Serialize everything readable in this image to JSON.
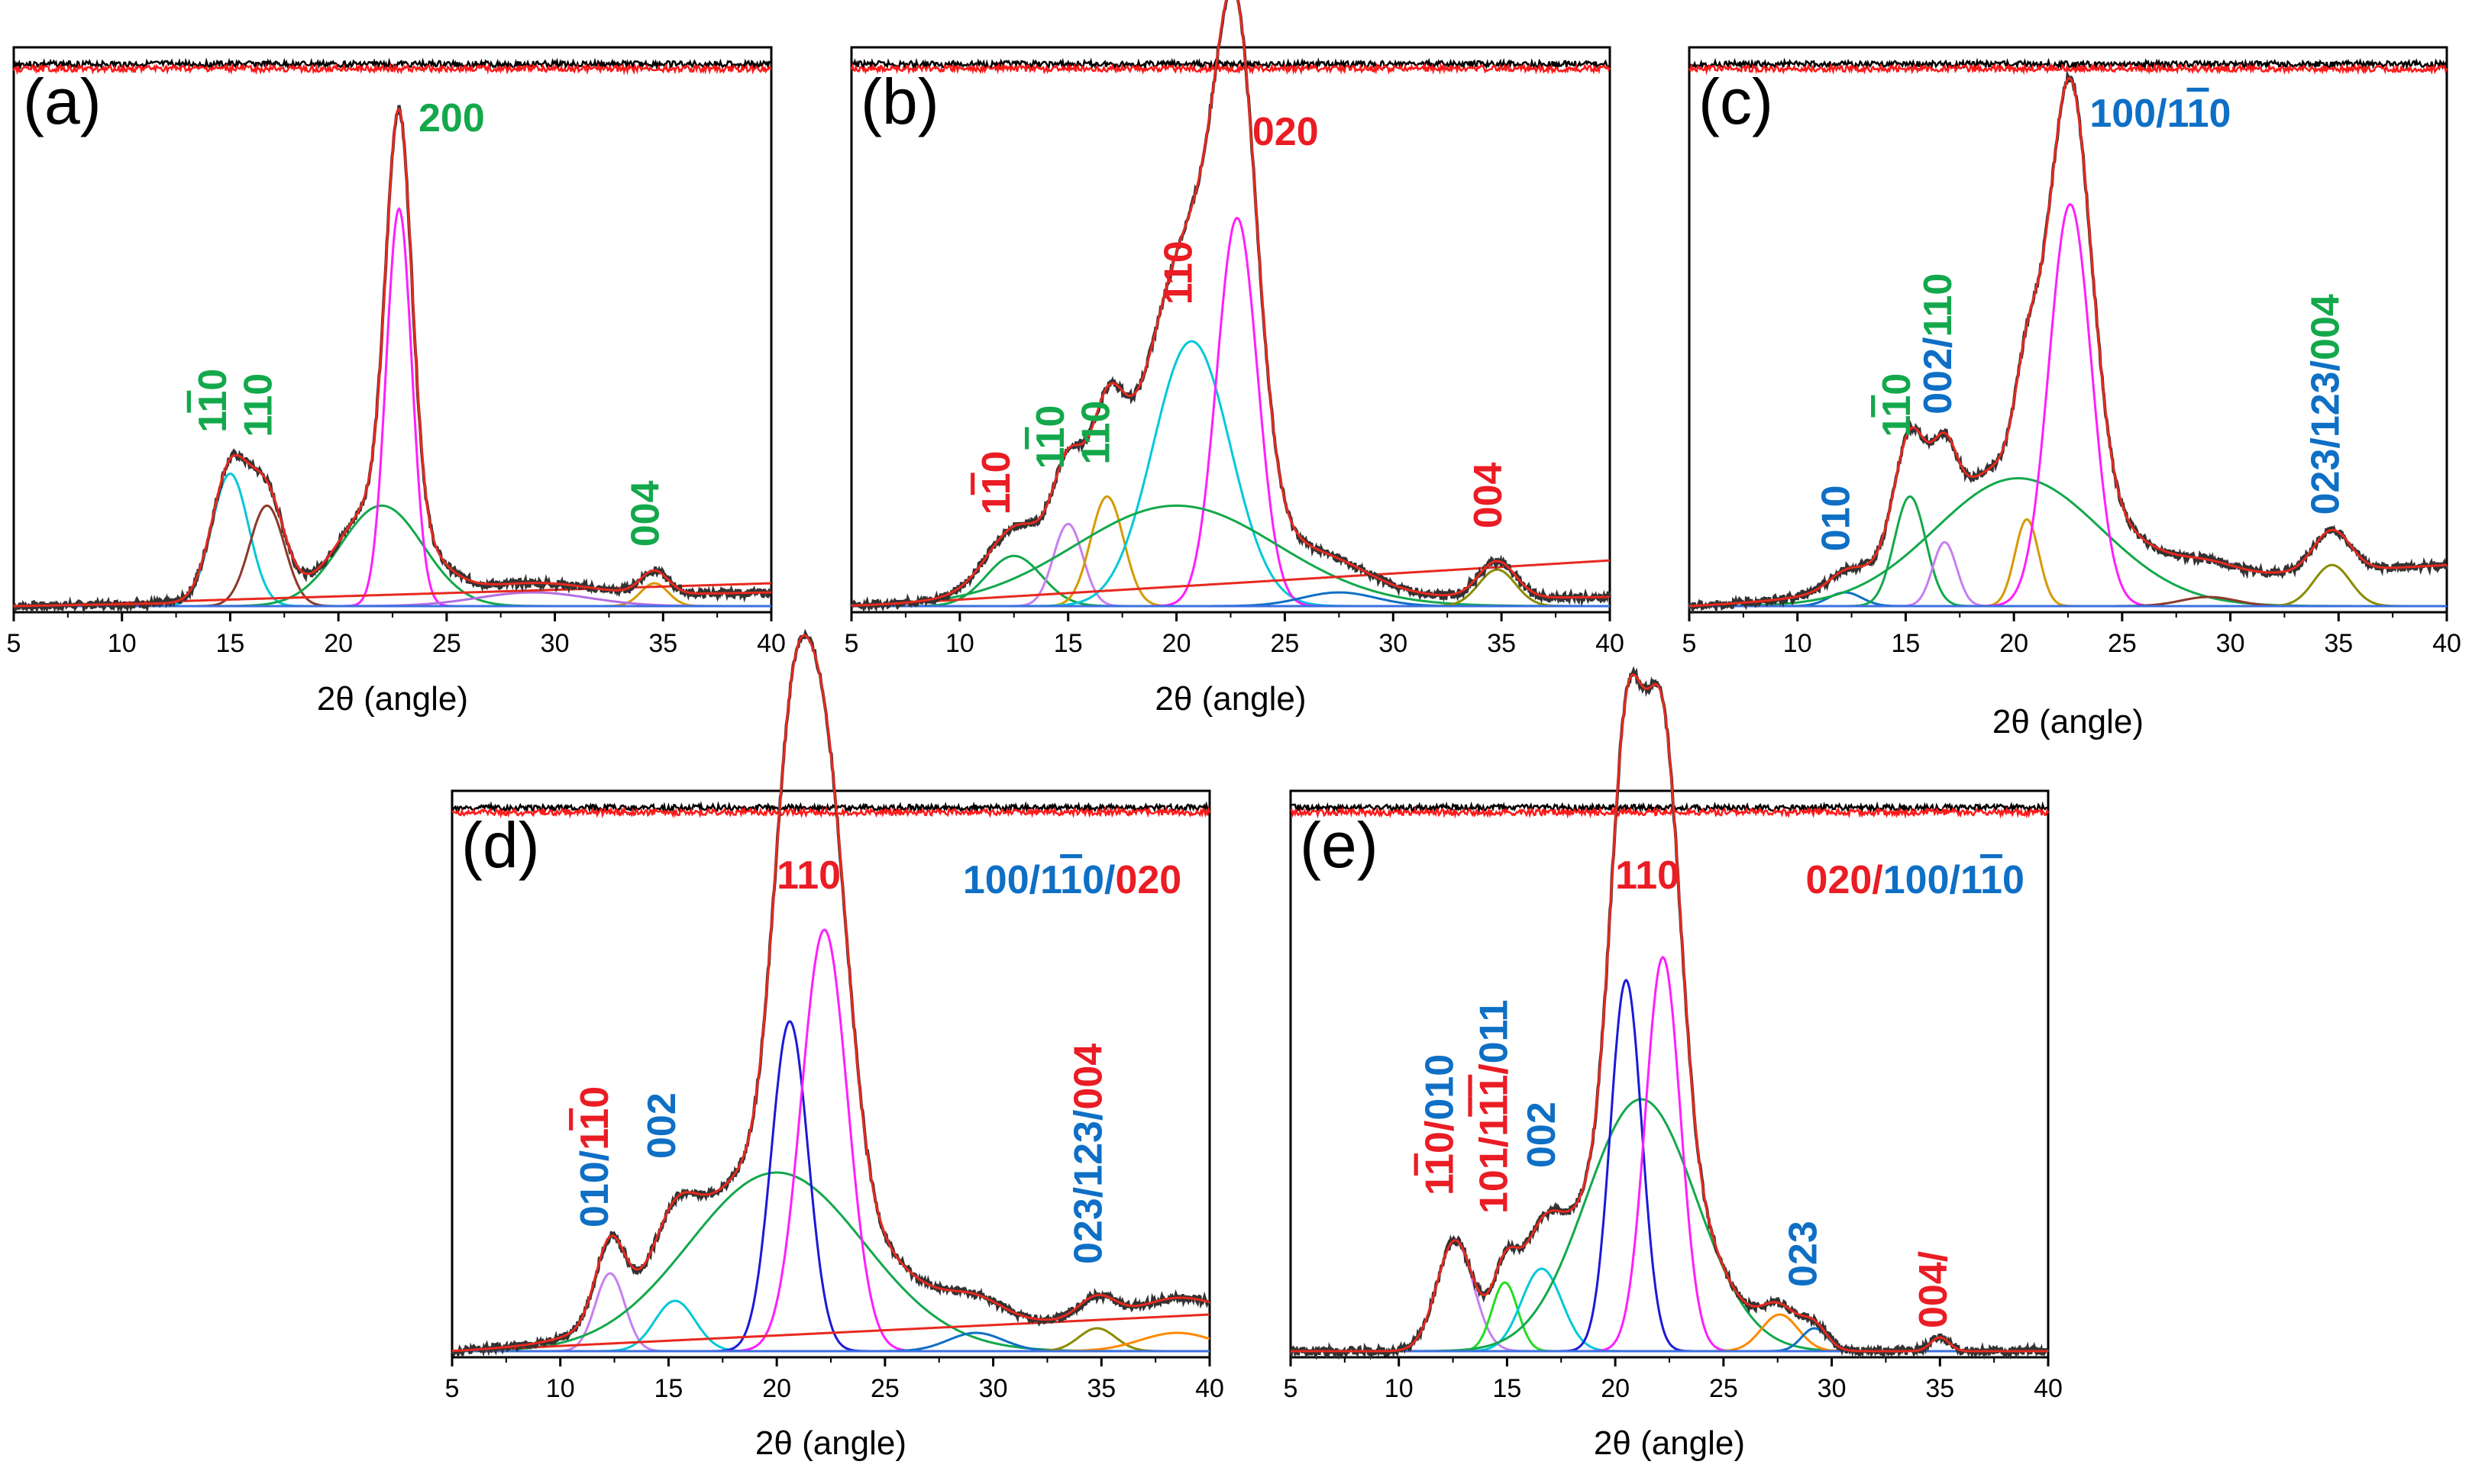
{
  "figure": {
    "type": "xrd_deconvolution",
    "colors": {
      "raw": "#333333",
      "fit": "#e8291e",
      "residual_black": "#000000",
      "residual_red": "#ff1a1a"
    }
  },
  "palette": {
    "green": "#13a84b",
    "red": "#ea1c24",
    "blue": "#0e6fc5"
  },
  "chart_data": [
    {
      "panel": "a",
      "panel_label": "(a)",
      "type": "line",
      "xlabel": "2θ (angle)",
      "xlim": [
        5,
        40
      ],
      "ylim": [
        0,
        1.12
      ],
      "xticks": [
        "5",
        "10",
        "15",
        "20",
        "25",
        "30",
        "35",
        "40"
      ],
      "components": [
        {
          "color": "#00c8d8",
          "type": "gauss",
          "center": 15.0,
          "height": 0.29,
          "fwhm": 2.0
        },
        {
          "color": "#8b3a2a",
          "type": "gauss",
          "center": 16.7,
          "height": 0.22,
          "fwhm": 1.9
        },
        {
          "color": "#13a84b",
          "type": "gauss",
          "center": 22.0,
          "height": 0.22,
          "fwhm": 4.5
        },
        {
          "color": "#ff1eff",
          "type": "gauss",
          "center": 22.8,
          "height": 0.87,
          "fwhm": 1.4
        },
        {
          "color": "#d69a00",
          "type": "gauss",
          "center": 34.6,
          "height": 0.05,
          "fwhm": 1.5
        },
        {
          "color": "#b46de0",
          "type": "gauss",
          "center": 29.0,
          "height": 0.03,
          "fwhm": 6.0
        },
        {
          "color": "#e8291e",
          "type": "line",
          "from": 0.0,
          "to": 0.05
        },
        {
          "color": "#3a6fe0",
          "type": "line",
          "from": 0.0,
          "to": 0.0
        }
      ],
      "baseline": {
        "from": 0.0,
        "to": 0.03
      },
      "annotations": [
        {
          "x": 14.8,
          "y": 0.38,
          "vertical": true,
          "parts": [
            {
              "t": "1",
              "c": "green"
            },
            {
              "t": "1",
              "c": "green",
              "bar": true
            },
            {
              "t": "0",
              "c": "green"
            }
          ]
        },
        {
          "x": 16.9,
          "y": 0.37,
          "vertical": true,
          "parts": [
            {
              "t": "110",
              "c": "green"
            }
          ]
        },
        {
          "x": 23.7,
          "y": 1.04,
          "vertical": false,
          "parts": [
            {
              "t": "200",
              "c": "green"
            }
          ]
        },
        {
          "x": 34.8,
          "y": 0.13,
          "vertical": true,
          "parts": [
            {
              "t": "004",
              "c": "green"
            }
          ]
        }
      ]
    },
    {
      "panel": "b",
      "panel_label": "(b)",
      "type": "line",
      "xlabel": "2θ (angle)",
      "xlim": [
        5,
        40
      ],
      "ylim": [
        0,
        1.12
      ],
      "xticks": [
        "5",
        "10",
        "15",
        "20",
        "25",
        "30",
        "35",
        "40"
      ],
      "components": [
        {
          "color": "#13a84b",
          "type": "gauss",
          "center": 12.5,
          "height": 0.11,
          "fwhm": 3.0
        },
        {
          "color": "#c77ff0",
          "type": "gauss",
          "center": 15.0,
          "height": 0.18,
          "fwhm": 1.6
        },
        {
          "color": "#d69a00",
          "type": "gauss",
          "center": 16.8,
          "height": 0.24,
          "fwhm": 1.8
        },
        {
          "color": "#00c8d8",
          "type": "gauss",
          "center": 20.7,
          "height": 0.58,
          "fwhm": 4.2
        },
        {
          "color": "#ff1eff",
          "type": "gauss",
          "center": 22.8,
          "height": 0.85,
          "fwhm": 2.2
        },
        {
          "color": "#13a84b",
          "type": "gauss",
          "center": 20.0,
          "height": 0.22,
          "fwhm": 11.0
        },
        {
          "color": "#0e6fc5",
          "type": "gauss",
          "center": 27.5,
          "height": 0.03,
          "fwhm": 4.0
        },
        {
          "color": "#8b8b00",
          "type": "gauss",
          "center": 34.8,
          "height": 0.08,
          "fwhm": 2.0
        },
        {
          "color": "#e8291e",
          "type": "line",
          "from": 0.0,
          "to": 0.1
        },
        {
          "color": "#3a6fe0",
          "type": "line",
          "from": 0.0,
          "to": 0.0
        }
      ],
      "baseline": {
        "from": 0.0,
        "to": 0.02
      },
      "annotations": [
        {
          "x": 12.3,
          "y": 0.2,
          "vertical": true,
          "parts": [
            {
              "t": "1",
              "c": "red"
            },
            {
              "t": "1",
              "c": "red",
              "bar": true
            },
            {
              "t": "0",
              "c": "red"
            }
          ]
        },
        {
          "x": 14.8,
          "y": 0.3,
          "vertical": true,
          "parts": [
            {
              "t": "1",
              "c": "green"
            },
            {
              "t": "1",
              "c": "green",
              "bar": true
            },
            {
              "t": "0",
              "c": "green"
            }
          ]
        },
        {
          "x": 16.9,
          "y": 0.31,
          "vertical": true,
          "parts": [
            {
              "t": "110",
              "c": "green"
            }
          ]
        },
        {
          "x": 20.7,
          "y": 0.66,
          "vertical": true,
          "parts": [
            {
              "t": "110",
              "c": "red"
            }
          ]
        },
        {
          "x": 23.5,
          "y": 1.01,
          "vertical": false,
          "parts": [
            {
              "t": "020",
              "c": "red"
            }
          ]
        },
        {
          "x": 35.0,
          "y": 0.17,
          "vertical": true,
          "parts": [
            {
              "t": "004",
              "c": "red"
            }
          ]
        }
      ]
    },
    {
      "panel": "c",
      "panel_label": "(c)",
      "type": "line",
      "xlabel": "2θ (angle)",
      "xlim": [
        5,
        40
      ],
      "ylim": [
        0,
        1.12
      ],
      "xticks": [
        "5",
        "10",
        "15",
        "20",
        "25",
        "30",
        "35",
        "40"
      ],
      "components": [
        {
          "color": "#0e6fc5",
          "type": "gauss",
          "center": 12.2,
          "height": 0.03,
          "fwhm": 1.8
        },
        {
          "color": "#13a84b",
          "type": "gauss",
          "center": 15.2,
          "height": 0.24,
          "fwhm": 1.7
        },
        {
          "color": "#c77ff0",
          "type": "gauss",
          "center": 16.8,
          "height": 0.14,
          "fwhm": 1.3
        },
        {
          "color": "#d69a00",
          "type": "gauss",
          "center": 20.6,
          "height": 0.19,
          "fwhm": 1.3
        },
        {
          "color": "#13a84b",
          "type": "gauss",
          "center": 20.2,
          "height": 0.28,
          "fwhm": 9.0
        },
        {
          "color": "#ff1eff",
          "type": "gauss",
          "center": 22.6,
          "height": 0.88,
          "fwhm": 2.3
        },
        {
          "color": "#8b3a2a",
          "type": "gauss",
          "center": 29.0,
          "height": 0.02,
          "fwhm": 3.0
        },
        {
          "color": "#8b8b00",
          "type": "gauss",
          "center": 34.7,
          "height": 0.09,
          "fwhm": 2.0
        },
        {
          "color": "#00c8d8",
          "type": "line",
          "from": 0.0,
          "to": 0.0
        },
        {
          "color": "#3a6fe0",
          "type": "line",
          "from": 0.0,
          "to": 0.0
        }
      ],
      "baseline": {
        "from": 0.0,
        "to": 0.09
      },
      "annotations": [
        {
          "x": 12.4,
          "y": 0.12,
          "vertical": true,
          "parts": [
            {
              "t": "010",
              "c": "blue"
            }
          ]
        },
        {
          "x": 15.2,
          "y": 0.37,
          "vertical": true,
          "parts": [
            {
              "t": "1",
              "c": "green"
            },
            {
              "t": "1",
              "c": "green",
              "bar": true
            },
            {
              "t": "0",
              "c": "green"
            }
          ]
        },
        {
          "x": 17.1,
          "y": 0.42,
          "vertical": true,
          "parts": [
            {
              "t": "002/",
              "c": "blue"
            },
            {
              "t": "110",
              "c": "green"
            }
          ]
        },
        {
          "x": 35.0,
          "y": 0.2,
          "vertical": true,
          "parts": [
            {
              "t": "023/123/",
              "c": "blue"
            },
            {
              "t": "004",
              "c": "green"
            }
          ]
        },
        {
          "x": 23.5,
          "y": 1.05,
          "vertical": false,
          "parts": [
            {
              "t": "100/1",
              "c": "blue"
            },
            {
              "t": "1",
              "c": "blue",
              "bar": true
            },
            {
              "t": "0",
              "c": "blue"
            }
          ]
        }
      ]
    },
    {
      "panel": "d",
      "panel_label": "(d)",
      "type": "line",
      "xlabel": "2θ (angle)",
      "xlim": [
        5,
        40
      ],
      "ylim": [
        0,
        1.12
      ],
      "xticks": [
        "5",
        "10",
        "15",
        "20",
        "25",
        "30",
        "35",
        "40"
      ],
      "components": [
        {
          "color": "#c77ff0",
          "type": "gauss",
          "center": 12.3,
          "height": 0.17,
          "fwhm": 1.6
        },
        {
          "color": "#00c8d8",
          "type": "gauss",
          "center": 15.3,
          "height": 0.11,
          "fwhm": 2.2
        },
        {
          "color": "#13a84b",
          "type": "gauss",
          "center": 20.0,
          "height": 0.39,
          "fwhm": 9.5
        },
        {
          "color": "#1a1ad8",
          "type": "gauss",
          "center": 20.6,
          "height": 0.72,
          "fwhm": 2.0
        },
        {
          "color": "#ff1eff",
          "type": "gauss",
          "center": 22.2,
          "height": 0.92,
          "fwhm": 2.5
        },
        {
          "color": "#0e6fc5",
          "type": "gauss",
          "center": 29.2,
          "height": 0.04,
          "fwhm": 3.0
        },
        {
          "color": "#8b8b00",
          "type": "gauss",
          "center": 34.8,
          "height": 0.05,
          "fwhm": 2.0
        },
        {
          "color": "#e8291e",
          "type": "line",
          "from": 0.0,
          "to": 0.08
        },
        {
          "color": "#ff8800",
          "type": "gauss",
          "center": 38.5,
          "height": 0.04,
          "fwhm": 4.0
        },
        {
          "color": "#3a6fe0",
          "type": "line",
          "from": 0.0,
          "to": 0.0
        }
      ],
      "baseline": {
        "from": 0.0,
        "to": 0.08
      },
      "annotations": [
        {
          "x": 12.2,
          "y": 0.27,
          "vertical": true,
          "parts": [
            {
              "t": "010/",
              "c": "blue"
            },
            {
              "t": "1",
              "c": "red"
            },
            {
              "t": "1",
              "c": "red",
              "bar": true
            },
            {
              "t": "0",
              "c": "red"
            }
          ]
        },
        {
          "x": 15.3,
          "y": 0.42,
          "vertical": true,
          "parts": [
            {
              "t": "002",
              "c": "blue"
            }
          ]
        },
        {
          "x": 35.0,
          "y": 0.19,
          "vertical": true,
          "parts": [
            {
              "t": "023/123/",
              "c": "blue"
            },
            {
              "t": "004",
              "c": "red"
            }
          ]
        },
        {
          "x": 20.0,
          "y": 1.01,
          "vertical": false,
          "parts": [
            {
              "t": "110",
              "c": "red"
            }
          ]
        },
        {
          "x": 28.6,
          "y": 1.0,
          "vertical": false,
          "parts": [
            {
              "t": "100/1",
              "c": "blue"
            },
            {
              "t": "1",
              "c": "blue",
              "bar": true
            },
            {
              "t": "0/",
              "c": "blue"
            },
            {
              "t": "020",
              "c": "red"
            }
          ]
        }
      ]
    },
    {
      "panel": "e",
      "panel_label": "(e)",
      "type": "line",
      "xlabel": "2θ (angle)",
      "xlim": [
        5,
        40
      ],
      "ylim": [
        0,
        1.12
      ],
      "xticks": [
        "5",
        "10",
        "15",
        "20",
        "25",
        "30",
        "35",
        "40"
      ],
      "components": [
        {
          "color": "#c77ff0",
          "type": "gauss",
          "center": 12.6,
          "height": 0.24,
          "fwhm": 2.0
        },
        {
          "color": "#22dd22",
          "type": "gauss",
          "center": 14.9,
          "height": 0.15,
          "fwhm": 1.4
        },
        {
          "color": "#00c8d8",
          "type": "gauss",
          "center": 16.6,
          "height": 0.18,
          "fwhm": 2.2
        },
        {
          "color": "#13a84b",
          "type": "gauss",
          "center": 21.2,
          "height": 0.55,
          "fwhm": 6.0
        },
        {
          "color": "#1a1ad8",
          "type": "gauss",
          "center": 20.5,
          "height": 0.81,
          "fwhm": 1.7
        },
        {
          "color": "#ff1eff",
          "type": "gauss",
          "center": 22.2,
          "height": 0.86,
          "fwhm": 1.9
        },
        {
          "color": "#ff8800",
          "type": "gauss",
          "center": 27.6,
          "height": 0.08,
          "fwhm": 2.0
        },
        {
          "color": "#0e6fc5",
          "type": "gauss",
          "center": 29.2,
          "height": 0.05,
          "fwhm": 1.4
        },
        {
          "color": "#e8291e",
          "type": "gauss",
          "center": 35.0,
          "height": 0.03,
          "fwhm": 1.0
        },
        {
          "color": "#3a6fe0",
          "type": "line",
          "from": 0.0,
          "to": 0.0
        }
      ],
      "baseline": {
        "from": 0.0,
        "to": 0.0
      },
      "annotations": [
        {
          "x": 12.5,
          "y": 0.34,
          "vertical": true,
          "parts": [
            {
              "t": "1",
              "c": "red"
            },
            {
              "t": "1",
              "c": "red",
              "bar": true
            },
            {
              "t": "0/",
              "c": "red"
            },
            {
              "t": "010",
              "c": "blue"
            }
          ]
        },
        {
          "x": 15.0,
          "y": 0.3,
          "vertical": true,
          "parts": [
            {
              "t": "101/1",
              "c": "red"
            },
            {
              "t": "1",
              "c": "red",
              "bar": true
            },
            {
              "t": "1",
              "c": "red",
              "bar": true
            },
            {
              "t": "/",
              "c": "red"
            },
            {
              "t": "011",
              "c": "blue"
            }
          ]
        },
        {
          "x": 17.2,
          "y": 0.4,
          "vertical": true,
          "parts": [
            {
              "t": "002",
              "c": "blue"
            }
          ]
        },
        {
          "x": 29.3,
          "y": 0.14,
          "vertical": true,
          "parts": [
            {
              "t": "023",
              "c": "blue"
            }
          ]
        },
        {
          "x": 35.3,
          "y": 0.05,
          "vertical": true,
          "parts": [
            {
              "t": "004/",
              "c": "red"
            }
          ]
        },
        {
          "x": 20.0,
          "y": 1.01,
          "vertical": false,
          "parts": [
            {
              "t": "110",
              "c": "red"
            }
          ]
        },
        {
          "x": 28.8,
          "y": 1.0,
          "vertical": false,
          "parts": [
            {
              "t": "020/",
              "c": "red"
            },
            {
              "t": "100/1",
              "c": "blue"
            },
            {
              "t": "1",
              "c": "blue",
              "bar": true
            },
            {
              "t": "0",
              "c": "blue"
            }
          ]
        }
      ]
    }
  ]
}
